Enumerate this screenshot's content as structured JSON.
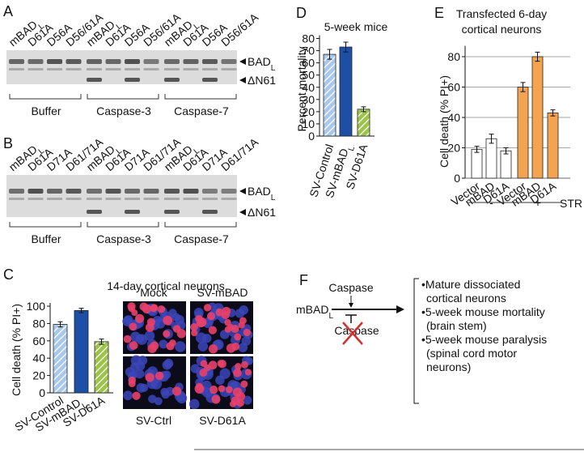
{
  "panels": {
    "A": {
      "letter": "A",
      "lanes": [
        {
          "text": "mBAD",
          "sub": "L"
        },
        "D61A",
        "D56A",
        "D56/61A",
        {
          "text": "mBAD",
          "sub": "L"
        },
        "D61A",
        "D56A",
        "D56/61A",
        {
          "text": "mBAD",
          "sub": "L"
        },
        "D61A",
        "D56A",
        "D56/61A"
      ],
      "bands": [
        {
          "text": "BAD",
          "sub": "L"
        },
        "ΔN61"
      ],
      "groups": [
        "Buffer",
        "Caspase-3",
        "Caspase-7"
      ]
    },
    "B": {
      "letter": "B",
      "lanes": [
        {
          "text": "mBAD",
          "sub": "L"
        },
        "D61A",
        "D71A",
        "D61/71A",
        {
          "text": "mBAD",
          "sub": "L"
        },
        "D61A",
        "D71A",
        "D61/71A",
        {
          "text": "mBAD",
          "sub": "L"
        },
        "D61A",
        "D71A",
        "D61/71A"
      ],
      "bands": [
        {
          "text": "BAD",
          "sub": "L"
        },
        "ΔN61"
      ],
      "groups": [
        "Buffer",
        "Caspase-3",
        "Caspase-7"
      ]
    },
    "C": {
      "letter": "C",
      "images": [
        "Mock",
        "SV-mBAD",
        "SV-Ctrl",
        "SV-D61A"
      ]
    },
    "D": {
      "letter": "D"
    },
    "E": {
      "letter": "E"
    },
    "F": {
      "letter": "F",
      "source": {
        "text": "mBAD",
        "sub": "L"
      },
      "activator": "Caspase",
      "inhibited": "Caspase",
      "outcomes": [
        [
          "•Mature dissociated",
          "cortical  neurons"
        ],
        [
          "•5-week mouse mortality",
          "(brain stem)"
        ],
        [
          "•5-week mouse paralysis",
          "(spinal cord motor",
          "neurons)"
        ]
      ]
    }
  },
  "chart_data": [
    {
      "type": "bar",
      "title": "14-day cortical neurons",
      "ylabel": "Cell death (% PI+)",
      "categories": [
        "SV-Control",
        {
          "text": "SV-mBAD",
          "sub": "L"
        },
        "SV-D61A"
      ],
      "values": [
        79,
        95,
        59
      ],
      "errors": [
        3,
        2.5,
        3
      ],
      "colors": [
        "#a9c8ea",
        "#1d4fa6",
        "#9cc44a"
      ],
      "hatch": [
        true,
        false,
        true
      ],
      "ylim": [
        0,
        100
      ],
      "yticks": [
        0,
        20,
        40,
        60,
        80,
        100
      ],
      "grid": false
    },
    {
      "type": "bar",
      "title": "5-week mice",
      "ylabel": "Percent mortality",
      "categories": [
        "SV-Control",
        {
          "text": "SV-mBAD",
          "sub": "L"
        },
        "SV-D61A"
      ],
      "values": [
        67,
        73,
        22
      ],
      "errors": [
        4,
        4,
        2
      ],
      "colors": [
        "#a9c8ea",
        "#1d4fa6",
        "#9cc44a"
      ],
      "hatch": [
        true,
        false,
        true
      ],
      "ylim": [
        0,
        80
      ],
      "yticks": [
        0,
        10,
        20,
        30,
        40,
        50,
        60,
        70,
        80
      ],
      "grid": false
    },
    {
      "type": "bar",
      "title": [
        "Transfected 6-day",
        "cortical neurons"
      ],
      "ylabel": "Cell death (% PI+)",
      "categories": [
        "Vector",
        "mBAD",
        "D61A",
        "Vector",
        "mBAD",
        "D61A"
      ],
      "values": [
        19,
        26,
        18,
        60,
        80,
        43
      ],
      "errors": [
        2,
        3,
        2,
        3,
        3,
        2
      ],
      "colors": [
        "#ffffff",
        "#ffffff",
        "#ffffff",
        "#f4a450",
        "#f4a450",
        "#f4a450"
      ],
      "hatch": [
        false,
        false,
        false,
        false,
        false,
        false
      ],
      "groups": [
        "-",
        "+"
      ],
      "group_label": "STR",
      "ylim": [
        0,
        85
      ],
      "yticks": [
        0,
        20,
        40,
        60,
        80
      ],
      "grid": true
    }
  ]
}
